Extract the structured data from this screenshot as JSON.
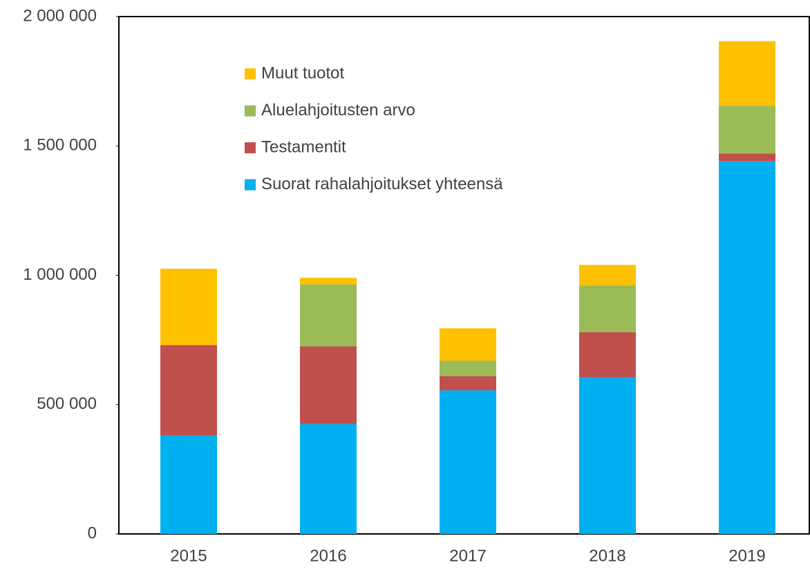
{
  "chart_data": {
    "type": "stacked_bar",
    "categories": [
      "2015",
      "2016",
      "2017",
      "2018",
      "2019"
    ],
    "series": [
      {
        "name": "Suorat rahalahjoitukset yhteensä",
        "color": "#00b0f0",
        "values": [
          380000,
          425000,
          555000,
          605000,
          1440000
        ]
      },
      {
        "name": "Testamentit",
        "color": "#c0504d",
        "values": [
          350000,
          300000,
          55000,
          175000,
          30000
        ]
      },
      {
        "name": "Aluelahjoitusten arvo",
        "color": "#9bbb59",
        "values": [
          0,
          240000,
          60000,
          180000,
          185000
        ]
      },
      {
        "name": "Muut tuotot",
        "color": "#ffc000",
        "values": [
          295000,
          25000,
          125000,
          80000,
          250000
        ]
      }
    ],
    "ylim": [
      0,
      2000000
    ],
    "yticks": [
      0,
      {
        "value": 500000,
        "label": "500 000"
      },
      {
        "value": 1000000,
        "label": "1 000 000"
      },
      {
        "value": 1500000,
        "label": "1 500 000"
      },
      {
        "value": 2000000,
        "label": "2 000 000"
      }
    ],
    "grid": false,
    "legend": "top-left"
  }
}
